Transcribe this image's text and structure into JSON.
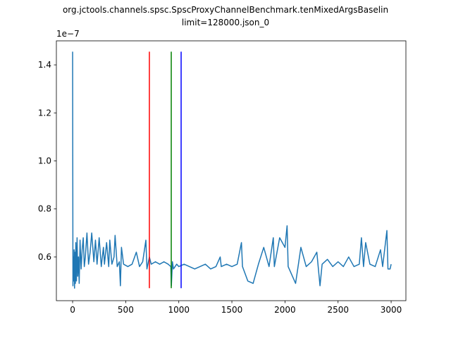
{
  "chart_data": {
    "type": "line",
    "title": [
      "org.jctools.channels.spsc.SpscProxyChannelBenchmark.tenMixedArgsBaselin",
      "limit=128000.json_0"
    ],
    "y_offset_label": "1e−7",
    "xlim": [
      -153,
      3139
    ],
    "ylim": [
      0.418,
      1.5
    ],
    "xticks": [
      0,
      500,
      1000,
      1500,
      2000,
      2500,
      3000
    ],
    "yticks": [
      0.6,
      0.8,
      {
        "value": 1,
        "label": "1.0"
      },
      1.2,
      1.4
    ],
    "series": [
      {
        "color": "#1f77b4",
        "x": [
          0,
          3,
          6,
          10,
          14,
          18,
          22,
          26,
          30,
          36,
          42,
          48,
          55,
          62,
          70,
          80,
          90,
          100,
          110,
          120,
          135,
          150,
          165,
          180,
          200,
          215,
          230,
          250,
          270,
          290,
          300,
          320,
          340,
          350,
          370,
          390,
          400,
          420,
          440,
          450,
          460,
          480,
          520,
          560,
          600,
          630,
          660,
          690,
          700,
          723,
          740,
          780,
          820,
          860,
          900,
          925,
          930,
          940,
          950,
          980,
          1000,
          1050,
          1100,
          1150,
          1200,
          1250,
          1300,
          1350,
          1390,
          1400,
          1450,
          1500,
          1550,
          1590,
          1600,
          1650,
          1700,
          1750,
          1800,
          1850,
          1890,
          1900,
          1950,
          2000,
          2020,
          2030,
          2100,
          2150,
          2200,
          2250,
          2300,
          2330,
          2350,
          2400,
          2450,
          2500,
          2550,
          2600,
          2650,
          2700,
          2720,
          2740,
          2760,
          2800,
          2850,
          2900,
          2920,
          2960,
          2970,
          2990,
          3000
        ],
        "values": [
          1.455,
          0.48,
          0.6,
          0.5,
          0.63,
          0.47,
          0.62,
          0.49,
          0.66,
          0.5,
          0.68,
          0.52,
          0.6,
          0.49,
          0.67,
          0.55,
          0.63,
          0.68,
          0.56,
          0.6,
          0.7,
          0.57,
          0.62,
          0.7,
          0.58,
          0.67,
          0.57,
          0.68,
          0.56,
          0.64,
          0.57,
          0.66,
          0.56,
          0.67,
          0.57,
          0.6,
          0.69,
          0.56,
          0.58,
          0.48,
          0.64,
          0.57,
          0.56,
          0.57,
          0.62,
          0.56,
          0.58,
          0.67,
          0.55,
          0.6,
          0.57,
          0.58,
          0.57,
          0.58,
          0.57,
          0.56,
          0.48,
          0.58,
          0.55,
          0.57,
          0.56,
          0.57,
          0.56,
          0.55,
          0.56,
          0.57,
          0.55,
          0.56,
          0.6,
          0.56,
          0.57,
          0.56,
          0.57,
          0.66,
          0.56,
          0.5,
          0.49,
          0.57,
          0.64,
          0.56,
          0.68,
          0.56,
          0.68,
          0.64,
          0.73,
          0.56,
          0.49,
          0.64,
          0.56,
          0.58,
          0.62,
          0.48,
          0.57,
          0.59,
          0.56,
          0.58,
          0.56,
          0.6,
          0.56,
          0.57,
          0.68,
          0.56,
          0.66,
          0.57,
          0.56,
          0.63,
          0.56,
          0.71,
          0.55,
          0.55,
          0.57
        ]
      }
    ],
    "vlines": [
      {
        "x": 723,
        "ymin": 0.47,
        "ymax": 1.455,
        "color": "#ff0000"
      },
      {
        "x": 929,
        "ymin": 0.47,
        "ymax": 1.455,
        "color": "#008000"
      },
      {
        "x": 1022,
        "ymin": 0.47,
        "ymax": 1.455,
        "color": "#0000ff"
      }
    ]
  }
}
